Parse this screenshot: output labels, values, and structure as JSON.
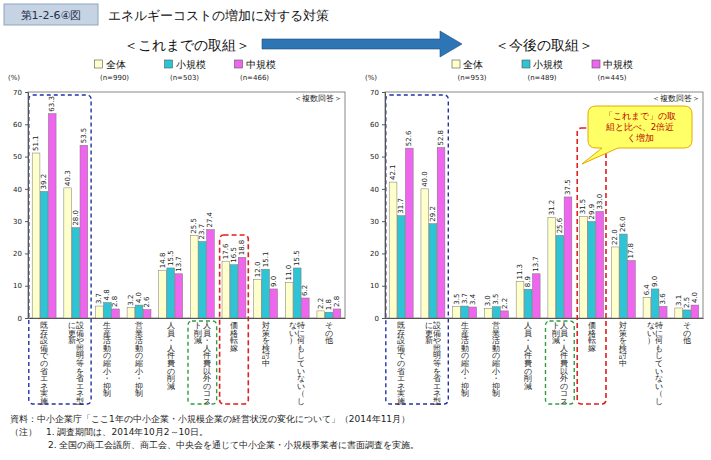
{
  "header": {
    "figure_number": "第1-2-6④図",
    "title": "エネルギーコストの増加に対する対策"
  },
  "chart_data": [
    {
      "type": "bar",
      "title": "＜これまでの取組＞",
      "annotation": "＜複数回答＞",
      "y_label": "(%)",
      "categories": [
        "既存設備での省エネ実施",
        "設備や照明等を省エネ型に更新",
        "生産活動の縮小・抑制",
        "営業活動の縮小・抑制",
        "人員・人件費の削減",
        "人員・人件費以外のコスト削減",
        "価格転嫁",
        "対策を検討中",
        "特に何もしていない（しない）",
        "その他"
      ],
      "series": [
        {
          "name": "全体",
          "n_label": "(n=990)",
          "color": "#ffffcc",
          "values": [
            51.1,
            40.3,
            3.7,
            3.2,
            14.8,
            25.5,
            17.6,
            12.0,
            11.0,
            2.2
          ],
          "value_labels": [
            "51.1",
            "40.3",
            "3.7",
            "3.2",
            "14.8",
            "25.5",
            "17.6",
            "12.0",
            "11.0",
            "2.2"
          ]
        },
        {
          "name": "小規模",
          "n_label": "(n=503)",
          "color": "#2ec4d6",
          "values": [
            39.2,
            28.0,
            4.8,
            4.0,
            15.5,
            23.7,
            16.5,
            15.1,
            15.5,
            1.8
          ],
          "value_labels": [
            "39.2",
            "28.0",
            "4.8",
            "4.0",
            "15.5",
            "23.7",
            "16.5",
            "15.1",
            "15.5",
            "1.8"
          ]
        },
        {
          "name": "中規模",
          "n_label": "(n=466)",
          "color": "#ee66ee",
          "values": [
            63.3,
            53.5,
            2.8,
            2.6,
            13.7,
            27.4,
            18.8,
            9.0,
            6.2,
            2.8
          ],
          "value_labels": [
            "63.3",
            "53.5",
            "2.8",
            "2.6",
            "13.7",
            "27.4",
            "18.8",
            "9.0",
            "6.2",
            "2.8"
          ]
        }
      ],
      "ylim": [
        0,
        70
      ],
      "yticks": [
        0,
        10,
        20,
        30,
        40,
        50,
        60,
        70
      ],
      "grid": false,
      "data_labels": true
    },
    {
      "type": "bar",
      "title": "＜今後の取組＞",
      "annotation": "＜複数回答＞",
      "y_label": "(%)",
      "callout": "「これまで」の取組と比べ、2倍近く増加",
      "categories": [
        "既存設備での省エネ実施",
        "設備や照明等を省エネ型に更新",
        "生産活動の縮小・抑制",
        "営業活動の縮小・抑制",
        "人員・人件費の削減",
        "人員・人件費以外のコスト削減",
        "価格転嫁",
        "対策を検討中",
        "特に何もしていない（しない）",
        "その他"
      ],
      "series": [
        {
          "name": "全体",
          "n_label": "(n=953)",
          "color": "#ffffcc",
          "values": [
            42.1,
            40.0,
            3.5,
            3.0,
            11.3,
            31.2,
            31.5,
            22.0,
            6.4,
            3.1
          ],
          "value_labels": [
            "42.1",
            "40.0",
            "3.5",
            "3.0",
            "11.3",
            "31.2",
            "31.5",
            "22.0",
            "6.4",
            "3.1"
          ]
        },
        {
          "name": "小規模",
          "n_label": "(n=489)",
          "color": "#2ec4d6",
          "values": [
            31.7,
            29.2,
            3.7,
            3.5,
            8.9,
            25.6,
            29.9,
            26.0,
            9.0,
            2.5
          ],
          "value_labels": [
            "31.7",
            "29.2",
            "3.7",
            "3.5",
            "8.9",
            "25.6",
            "29.9",
            "26.0",
            "9.0",
            "2.5"
          ]
        },
        {
          "name": "中規模",
          "n_label": "(n=445)",
          "color": "#ee66ee",
          "values": [
            52.6,
            52.8,
            3.4,
            2.2,
            13.7,
            37.5,
            33.0,
            17.8,
            3.6,
            4.0
          ],
          "value_labels": [
            "52.6",
            "52.8",
            "3.4",
            "2.2",
            "13.7",
            "37.5",
            "33.0",
            "17.8",
            "3.6",
            "4.0"
          ]
        }
      ],
      "ylim": [
        0,
        70
      ],
      "yticks": [
        0,
        10,
        20,
        30,
        40,
        50,
        60,
        70
      ],
      "grid": false,
      "data_labels": true
    }
  ],
  "notes": [
    "資料：中小企業庁「ここ1年の中小企業・小規模企業の経営状況の変化について」（2014年11月）",
    "（注）　1. 調査期間は、2014年10月2～10日。",
    "2. 全国の商工会議所、商工会、中央会を通じて中小企業・小規模事業者に書面調査を実施。"
  ]
}
